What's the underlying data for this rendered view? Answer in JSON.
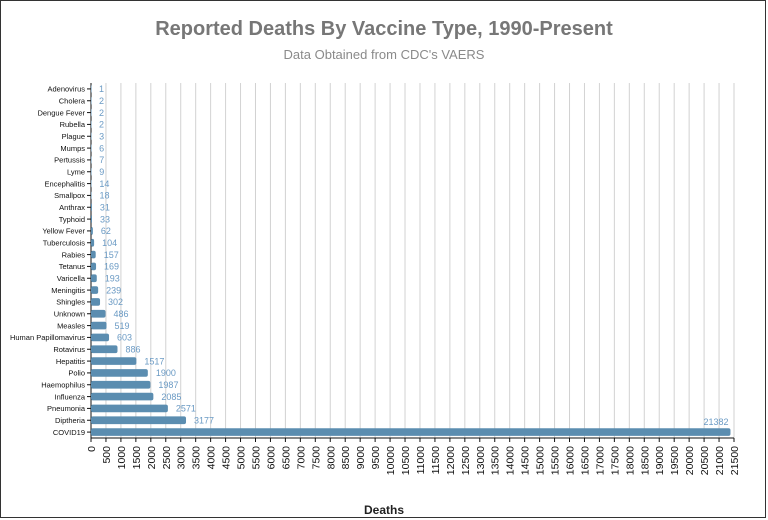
{
  "chart_data": {
    "type": "bar",
    "orientation": "horizontal",
    "title": "Reported Deaths By Vaccine Type, 1990-Present",
    "subtitle": "Data Obtained from CDC's VAERS",
    "xlabel": "Deaths",
    "ylabel": "",
    "xlim": [
      0,
      21500
    ],
    "x_tick_step": 500,
    "grid": true,
    "bar_color": "#5b8db0",
    "label_color": "#6a9ac4",
    "categories": [
      "Adenovirus",
      "Cholera",
      "Dengue Fever",
      "Rubella",
      "Plague",
      "Mumps",
      "Pertussis",
      "Lyme",
      "Encephalitis",
      "Smallpox",
      "Anthrax",
      "Typhoid",
      "Yellow Fever",
      "Tuberculosis",
      "Rabies",
      "Tetanus",
      "Varicella",
      "Meningitis",
      "Shingles",
      "Unknown",
      "Measles",
      "Human Papillomavirus",
      "Rotavirus",
      "Hepatitis",
      "Polio",
      "Haemophilus",
      "Influenza",
      "Pneumonia",
      "Diptheria",
      "COVID19"
    ],
    "values": [
      1,
      2,
      2,
      2,
      3,
      6,
      7,
      9,
      14,
      18,
      31,
      33,
      62,
      104,
      157,
      169,
      193,
      239,
      302,
      486,
      519,
      603,
      886,
      1517,
      1900,
      1987,
      2085,
      2571,
      3177,
      21382
    ]
  }
}
